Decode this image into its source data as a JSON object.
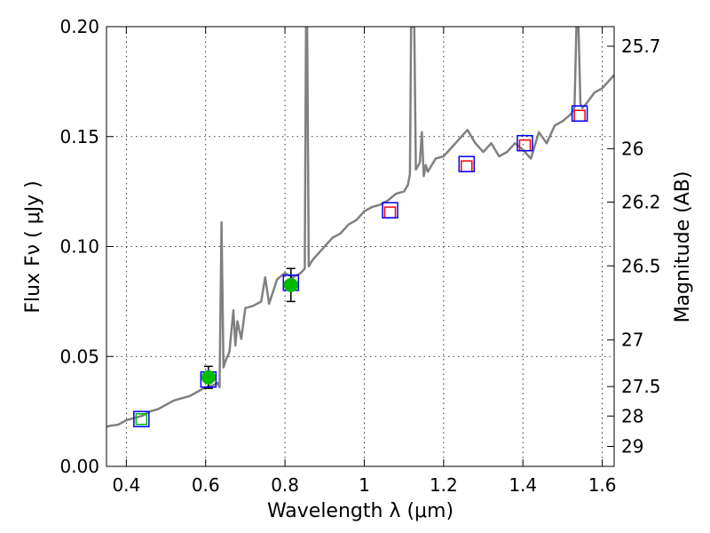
{
  "chart_data": {
    "type": "line",
    "xlabel": "Wavelength  λ (μm)",
    "ylabel": "Flux  Fν  ( μJy )",
    "ylabel_right": "Magnitude (AB)",
    "xlim": [
      0.35,
      1.63
    ],
    "ylim": [
      0.0,
      0.2
    ],
    "grid": true,
    "x_ticks": [
      {
        "value": 0.4,
        "label": "0.4"
      },
      {
        "value": 0.6,
        "label": "0.6"
      },
      {
        "value": 0.8,
        "label": "0.8"
      },
      {
        "value": 1.0,
        "label": "1"
      },
      {
        "value": 1.2,
        "label": "1.2"
      },
      {
        "value": 1.4,
        "label": "1.4"
      },
      {
        "value": 1.6,
        "label": "1.6"
      }
    ],
    "y_ticks": [
      {
        "value": 0.0,
        "label": "0.00"
      },
      {
        "value": 0.05,
        "label": "0.05"
      },
      {
        "value": 0.1,
        "label": "0.10"
      },
      {
        "value": 0.15,
        "label": "0.15"
      },
      {
        "value": 0.2,
        "label": "0.20"
      }
    ],
    "right_ticks": [
      {
        "flux": 0.1911,
        "label": "25.7"
      },
      {
        "flux": 0.1445,
        "label": "26"
      },
      {
        "flux": 0.1202,
        "label": "26.2"
      },
      {
        "flux": 0.0912,
        "label": "26.5"
      },
      {
        "flux": 0.0575,
        "label": "27"
      },
      {
        "flux": 0.0363,
        "label": "27.5"
      },
      {
        "flux": 0.0229,
        "label": "28"
      },
      {
        "flux": 0.0091,
        "label": "29"
      }
    ],
    "series": [
      {
        "role": "model_sed",
        "color": "#808080",
        "x": [
          0.35,
          0.36,
          0.38,
          0.4,
          0.42,
          0.44,
          0.46,
          0.48,
          0.5,
          0.52,
          0.54,
          0.56,
          0.58,
          0.6,
          0.62,
          0.63,
          0.635,
          0.64,
          0.645,
          0.65,
          0.66,
          0.67,
          0.675,
          0.68,
          0.69,
          0.7,
          0.72,
          0.74,
          0.75,
          0.76,
          0.78,
          0.8,
          0.82,
          0.84,
          0.85,
          0.853,
          0.856,
          0.86,
          0.87,
          0.88,
          0.9,
          0.92,
          0.94,
          0.96,
          0.98,
          1.0,
          1.02,
          1.04,
          1.06,
          1.08,
          1.1,
          1.11,
          1.115,
          1.118,
          1.122,
          1.126,
          1.13,
          1.14,
          1.145,
          1.15,
          1.155,
          1.16,
          1.18,
          1.2,
          1.22,
          1.24,
          1.26,
          1.28,
          1.3,
          1.32,
          1.34,
          1.36,
          1.38,
          1.4,
          1.42,
          1.44,
          1.46,
          1.48,
          1.5,
          1.52,
          1.53,
          1.535,
          1.54,
          1.545,
          1.55,
          1.56,
          1.58,
          1.6,
          1.63
        ],
        "y": [
          0.018,
          0.0185,
          0.019,
          0.021,
          0.022,
          0.023,
          0.025,
          0.026,
          0.028,
          0.03,
          0.031,
          0.032,
          0.034,
          0.036,
          0.037,
          0.038,
          0.036,
          0.111,
          0.045,
          0.048,
          0.052,
          0.071,
          0.055,
          0.066,
          0.058,
          0.072,
          0.073,
          0.075,
          0.086,
          0.074,
          0.085,
          0.088,
          0.086,
          0.088,
          0.09,
          0.2,
          0.2,
          0.091,
          0.094,
          0.096,
          0.1,
          0.104,
          0.106,
          0.11,
          0.112,
          0.116,
          0.118,
          0.119,
          0.121,
          0.124,
          0.125,
          0.128,
          0.133,
          0.2,
          0.2,
          0.2,
          0.135,
          0.138,
          0.152,
          0.132,
          0.137,
          0.134,
          0.14,
          0.141,
          0.145,
          0.149,
          0.153,
          0.147,
          0.143,
          0.147,
          0.141,
          0.143,
          0.147,
          0.144,
          0.14,
          0.152,
          0.147,
          0.155,
          0.157,
          0.16,
          0.163,
          0.2,
          0.2,
          0.165,
          0.163,
          0.165,
          0.17,
          0.172,
          0.178
        ]
      },
      {
        "role": "model_photometry",
        "marker": "open square",
        "color": "#0000ff",
        "x": [
          0.438,
          0.607,
          0.815,
          1.065,
          1.258,
          1.405,
          1.543
        ],
        "y": [
          0.0215,
          0.0395,
          0.0835,
          0.1165,
          0.1375,
          0.147,
          0.1605
        ]
      },
      {
        "role": "observed_photometry",
        "marker": "open square",
        "color": "#ff0000",
        "x": [
          1.065,
          1.258,
          1.405,
          1.543
        ],
        "y": [
          0.1155,
          0.1365,
          0.146,
          0.1595
        ]
      },
      {
        "role": "observed_detection",
        "marker": "filled circle",
        "color": "#00bb00",
        "x": [
          0.607,
          0.815
        ],
        "y": [
          0.0405,
          0.0825
        ],
        "yerr": [
          0.005,
          0.0075
        ]
      },
      {
        "role": "observed_upper_limit",
        "marker": "open square",
        "color": "#00bb00",
        "x": [
          0.438
        ],
        "y": [
          0.0215
        ]
      }
    ]
  }
}
